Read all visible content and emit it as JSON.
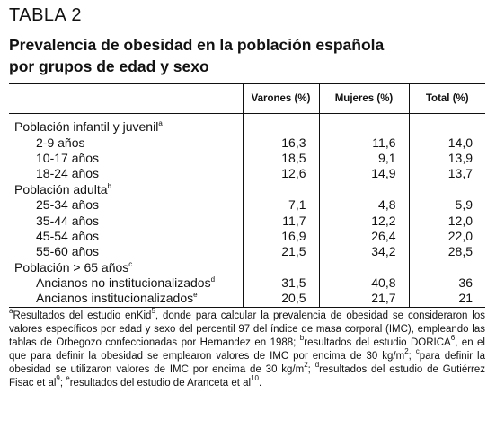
{
  "header": {
    "label": "TABLA 2",
    "title_lines": [
      "Prevalencia de obesidad en la población española",
      "por grupos de edad y sexo"
    ]
  },
  "table": {
    "columns": [
      "Varones (%)",
      "Mujeres (%)",
      "Total (%)"
    ],
    "groups": [
      {
        "label": "Población infantil y juvenil",
        "sup": "a",
        "rows": [
          {
            "label": "2-9 años",
            "cells": [
              "16,3",
              "11,6",
              "14,0"
            ]
          },
          {
            "label": "10-17 años",
            "cells": [
              "18,5",
              "9,1",
              "13,9"
            ]
          },
          {
            "label": "18-24 años",
            "cells": [
              "12,6",
              "14,9",
              "13,7"
            ]
          }
        ]
      },
      {
        "label": "Población adulta",
        "sup": "b",
        "rows": [
          {
            "label": "25-34 años",
            "cells": [
              "7,1",
              "4,8",
              "5,9"
            ]
          },
          {
            "label": "35-44 años",
            "cells": [
              "11,7",
              "12,2",
              "12,0"
            ]
          },
          {
            "label": "45-54 años",
            "cells": [
              "16,9",
              "26,4",
              "22,0"
            ]
          },
          {
            "label": "55-60 años",
            "cells": [
              "21,5",
              "34,2",
              "28,5"
            ]
          }
        ]
      },
      {
        "label": "Población > 65 años",
        "sup": "c",
        "rows": [
          {
            "label": "Ancianos no institucionalizados",
            "sup": "d",
            "cells": [
              "31,5",
              "40,8",
              "36"
            ]
          },
          {
            "label": "Ancianos institucionalizados",
            "sup": "e",
            "cells": [
              "20,5",
              "21,7",
              "21"
            ]
          }
        ]
      }
    ]
  },
  "footnote": [
    {
      "sup": "a"
    },
    {
      "text": "Resultados del estudio enKid"
    },
    {
      "sup": "5"
    },
    {
      "text": ", donde para calcular la prevalencia de obesidad se consideraron los valores específicos por edad y sexo del percentil 97 del índice de masa corporal (IMC), empleando las tablas de Orbegozo confeccionadas por Hernandez en 1988; "
    },
    {
      "sup": "b"
    },
    {
      "text": "resultados del estudio DORICA"
    },
    {
      "sup": "6"
    },
    {
      "text": ", en el que para definir la obesidad se emplearon valores de IMC por encima de 30 kg/m"
    },
    {
      "sup": "2"
    },
    {
      "text": "; "
    },
    {
      "sup": "c"
    },
    {
      "text": "para definir la obesidad se utilizaron valores de IMC por encima de 30 kg/m"
    },
    {
      "sup": "2"
    },
    {
      "text": "; "
    },
    {
      "sup": "d"
    },
    {
      "text": "resultados del estudio de Gutiérrez Fisac et al"
    },
    {
      "sup": "9"
    },
    {
      "text": "; "
    },
    {
      "sup": "e"
    },
    {
      "text": "resultados del estudio de Aranceta et al"
    },
    {
      "sup": "10"
    },
    {
      "text": "."
    }
  ]
}
